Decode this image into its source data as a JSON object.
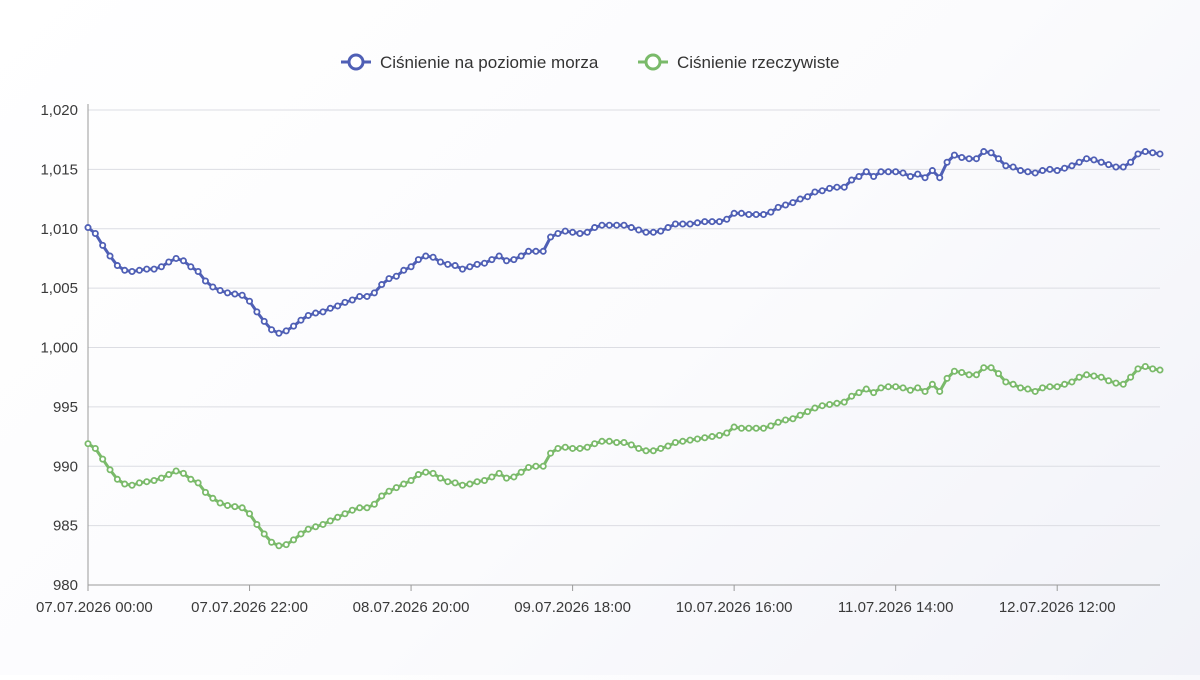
{
  "chart_data": {
    "type": "line",
    "title": "",
    "xlabel": "",
    "ylabel": "",
    "legend_position": "top-center",
    "grid": true,
    "ylim": [
      980,
      1020
    ],
    "y_ticks": [
      "1,020",
      "1,015",
      "1,010",
      "1,005",
      "1,000",
      "995",
      "990",
      "985",
      "980"
    ],
    "y_tick_values": [
      1020,
      1015,
      1010,
      1005,
      1000,
      995,
      990,
      985,
      980
    ],
    "x_ticks": [
      "07.07.2026 00:00",
      "07.07.2026 22:00",
      "08.07.2026 20:00",
      "09.07.2026 18:00",
      "10.07.2026 16:00",
      "11.07.2026 14:00",
      "12.07.2026 12:00"
    ],
    "x_tick_hours": [
      0,
      22,
      44,
      66,
      88,
      110,
      132
    ],
    "x_start": "07.07.2026 00:00",
    "x_step_hours": 1,
    "series": [
      {
        "name": "Ciśnienie na poziomie morza",
        "color": "#4f5fb5",
        "values": [
          1010.1,
          1009.6,
          1008.6,
          1007.7,
          1006.9,
          1006.5,
          1006.4,
          1006.5,
          1006.6,
          1006.6,
          1006.8,
          1007.2,
          1007.5,
          1007.3,
          1006.8,
          1006.4,
          1005.6,
          1005.1,
          1004.8,
          1004.6,
          1004.5,
          1004.4,
          1003.9,
          1003.0,
          1002.2,
          1001.5,
          1001.2,
          1001.4,
          1001.8,
          1002.3,
          1002.7,
          1002.9,
          1003.0,
          1003.3,
          1003.5,
          1003.8,
          1004.0,
          1004.3,
          1004.3,
          1004.6,
          1005.3,
          1005.8,
          1006.0,
          1006.5,
          1006.8,
          1007.4,
          1007.7,
          1007.6,
          1007.2,
          1007.0,
          1006.9,
          1006.6,
          1006.8,
          1007.0,
          1007.1,
          1007.4,
          1007.7,
          1007.3,
          1007.4,
          1007.7,
          1008.1,
          1008.1,
          1008.1,
          1009.3,
          1009.6,
          1009.8,
          1009.7,
          1009.6,
          1009.7,
          1010.1,
          1010.3,
          1010.3,
          1010.3,
          1010.3,
          1010.1,
          1009.9,
          1009.7,
          1009.7,
          1009.8,
          1010.1,
          1010.4,
          1010.4,
          1010.4,
          1010.5,
          1010.6,
          1010.6,
          1010.6,
          1010.8,
          1011.3,
          1011.3,
          1011.2,
          1011.2,
          1011.2,
          1011.4,
          1011.8,
          1012.0,
          1012.2,
          1012.5,
          1012.7,
          1013.1,
          1013.2,
          1013.4,
          1013.5,
          1013.5,
          1014.1,
          1014.4,
          1014.8,
          1014.4,
          1014.8,
          1014.8,
          1014.8,
          1014.7,
          1014.4,
          1014.6,
          1014.3,
          1014.9,
          1014.3,
          1015.6,
          1016.2,
          1016.0,
          1015.9,
          1015.9,
          1016.5,
          1016.4,
          1015.9,
          1015.3,
          1015.2,
          1014.9,
          1014.8,
          1014.7,
          1014.9,
          1015.0,
          1014.9,
          1015.1,
          1015.3,
          1015.6,
          1015.9,
          1015.8,
          1015.6,
          1015.4,
          1015.2,
          1015.2,
          1015.6,
          1016.3,
          1016.5,
          1016.4,
          1016.3
        ]
      },
      {
        "name": "Ciśnienie rzeczywiste",
        "color": "#7aba6a",
        "values": [
          991.9,
          991.5,
          990.6,
          989.7,
          988.9,
          988.5,
          988.4,
          988.6,
          988.7,
          988.8,
          989.0,
          989.3,
          989.6,
          989.4,
          988.9,
          988.6,
          987.8,
          987.3,
          986.9,
          986.7,
          986.6,
          986.5,
          986.0,
          985.1,
          984.3,
          983.6,
          983.3,
          983.4,
          983.8,
          984.3,
          984.7,
          984.9,
          985.1,
          985.4,
          985.7,
          986.0,
          986.3,
          986.5,
          986.5,
          986.8,
          987.5,
          987.9,
          988.2,
          988.5,
          988.8,
          989.3,
          989.5,
          989.4,
          989.0,
          988.7,
          988.6,
          988.4,
          988.5,
          988.7,
          988.8,
          989.1,
          989.4,
          989.0,
          989.1,
          989.5,
          989.9,
          990.0,
          990.0,
          991.1,
          991.5,
          991.6,
          991.5,
          991.5,
          991.6,
          991.9,
          992.1,
          992.1,
          992.0,
          992.0,
          991.8,
          991.5,
          991.3,
          991.3,
          991.5,
          991.7,
          992.0,
          992.1,
          992.2,
          992.3,
          992.4,
          992.5,
          992.6,
          992.8,
          993.3,
          993.2,
          993.2,
          993.2,
          993.2,
          993.4,
          993.7,
          993.9,
          994.0,
          994.3,
          994.6,
          994.9,
          995.1,
          995.2,
          995.3,
          995.4,
          995.9,
          996.2,
          996.5,
          996.2,
          996.6,
          996.7,
          996.7,
          996.6,
          996.4,
          996.6,
          996.3,
          996.9,
          996.3,
          997.4,
          998.0,
          997.9,
          997.7,
          997.7,
          998.3,
          998.3,
          997.8,
          997.1,
          996.9,
          996.6,
          996.5,
          996.3,
          996.6,
          996.7,
          996.7,
          996.9,
          997.1,
          997.5,
          997.7,
          997.6,
          997.5,
          997.2,
          997.0,
          996.9,
          997.5,
          998.2,
          998.4,
          998.2,
          998.1
        ]
      }
    ]
  }
}
